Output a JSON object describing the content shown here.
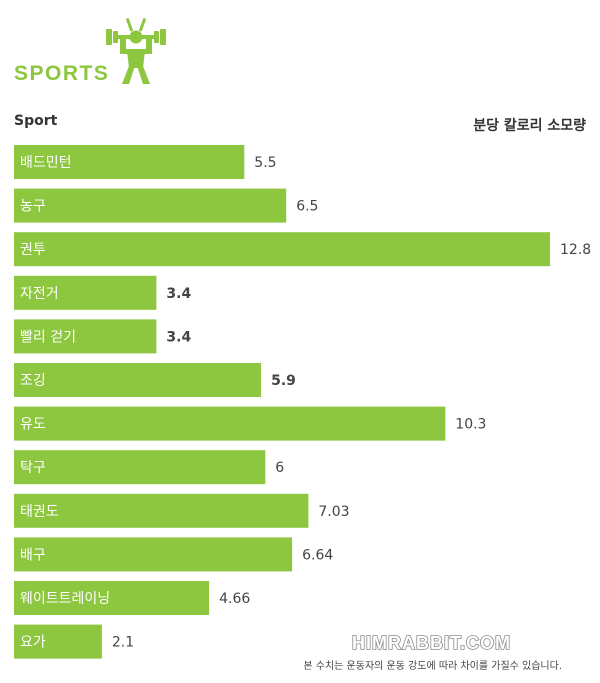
{
  "header": {
    "title": "SPORTS",
    "icon": "weightlifter-icon",
    "accent_color": "#8dc63f"
  },
  "chart_data": {
    "type": "bar",
    "orientation": "horizontal",
    "xlabel": "Sport",
    "ylabel": "분당 칼로리 소모량",
    "categories": [
      "배드민턴",
      "농구",
      "권투",
      "자전거",
      "빨리 걷기",
      "조깅",
      "유도",
      "탁구",
      "태권도",
      "배구",
      "웨이트트레이닝",
      "요가"
    ],
    "values": [
      5.5,
      6.5,
      12.8,
      3.4,
      3.4,
      5.9,
      10.3,
      6,
      7.03,
      6.64,
      4.66,
      2.1
    ],
    "value_labels": [
      "5.5",
      "6.5",
      "12.8",
      "3.4",
      "3.4",
      "5.9",
      "10.3",
      "6",
      "7.03",
      "6.64",
      "4.66",
      "2.1"
    ],
    "bold_value_labels": [
      false,
      false,
      false,
      true,
      true,
      true,
      false,
      false,
      false,
      false,
      false,
      false
    ],
    "bar_color": "#8dc63f",
    "xlim": [
      0,
      12.8
    ],
    "grid": false,
    "legend": "none"
  },
  "footer": {
    "watermark": "HIMRABBIT.COM",
    "footnote": "본 수치는 운동자의 운동 강도에 따라 차이를 가질수 있습니다."
  }
}
